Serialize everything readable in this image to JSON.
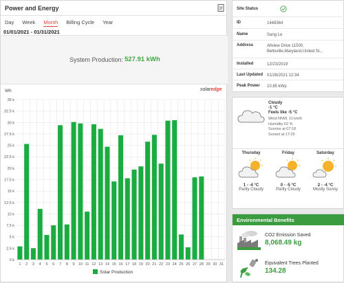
{
  "panel": {
    "title": "Power and Energy",
    "tabs": [
      "Day",
      "Week",
      "Month",
      "Billing Cycle",
      "Year"
    ],
    "active_tab": "Month",
    "date_range": "01/01/2021 - 01/31/2021",
    "production_label": "System Production:",
    "production_value": "527.91 kWh",
    "unit_label": "Wh",
    "brand_prefix": "solar",
    "brand_suffix": "edge"
  },
  "site": {
    "status_label": "Site Status",
    "id_label": "ID",
    "id_value": "1448364",
    "name_label": "Name",
    "name_value": "Sang Le",
    "address_label": "Address",
    "address_line1": "Allview Drive 11500,",
    "address_line2": "Beltsville,Maryland,United St...",
    "installed_label": "Installed",
    "installed_value": "12/23/2019",
    "updated_label": "Last Updated",
    "updated_value": "01/28/2021 12:34",
    "peak_label": "Peak Power",
    "peak_value": "10.85 kWp"
  },
  "weather": {
    "current": {
      "condition": "Cloudy",
      "temp": "-1 °C",
      "feels_like": "Feels like -5 °C",
      "wind": "Wind NNW, 11 km/h",
      "humidity": "Humidity 62 %",
      "sunrise": "Sunrise at 07:18",
      "sunset": "Sunset at 17:25"
    },
    "forecast": [
      {
        "day": "Thursday",
        "temp": "1 - -4 °C",
        "desc": "Partly Cloudy"
      },
      {
        "day": "Friday",
        "temp": "0 - -5 °C",
        "desc": "Partly Cloudy"
      },
      {
        "day": "Saturday",
        "temp": "2 - -4 °C",
        "desc": "Mostly Sunny"
      }
    ]
  },
  "env": {
    "title": "Environmental Benefits",
    "co2_label": "CO2 Emission Saved",
    "co2_value": "8,068.49 kg",
    "trees_label": "Equivalent Trees Planted",
    "trees_value": "134.28"
  },
  "colors": {
    "bar": "#1aac41",
    "accent_red": "#e0463f",
    "env_green": "#3a9b3f"
  },
  "chart_data": {
    "type": "bar",
    "ylabel": "Wh",
    "ylim": [
      0,
      35000
    ],
    "yticks": [
      "0 k",
      "2.5 k",
      "5 k",
      "7.5 k",
      "10 k",
      "12.5 k",
      "15 k",
      "17.5 k",
      "20 k",
      "22.5 k",
      "25 k",
      "27.5 k",
      "30 k",
      "32.5 k",
      "35 k"
    ],
    "categories": [
      "1",
      "2",
      "3",
      "4",
      "5",
      "6",
      "7",
      "8",
      "9",
      "10",
      "11",
      "12",
      "13",
      "14",
      "15",
      "16",
      "17",
      "18",
      "19",
      "20",
      "21",
      "22",
      "23",
      "24",
      "25",
      "26",
      "27",
      "28",
      "29",
      "30",
      "31"
    ],
    "series": [
      {
        "name": "Solar Production",
        "values": [
          2900,
          25300,
          2500,
          11100,
          5400,
          7500,
          29400,
          7700,
          30100,
          29800,
          10500,
          29600,
          28600,
          24700,
          17100,
          27200,
          17800,
          19700,
          20400,
          25800,
          27300,
          21000,
          30400,
          30500,
          5500,
          2700,
          18000,
          18200,
          0,
          0,
          0
        ]
      }
    ],
    "grid": true,
    "legend": "bottom"
  }
}
